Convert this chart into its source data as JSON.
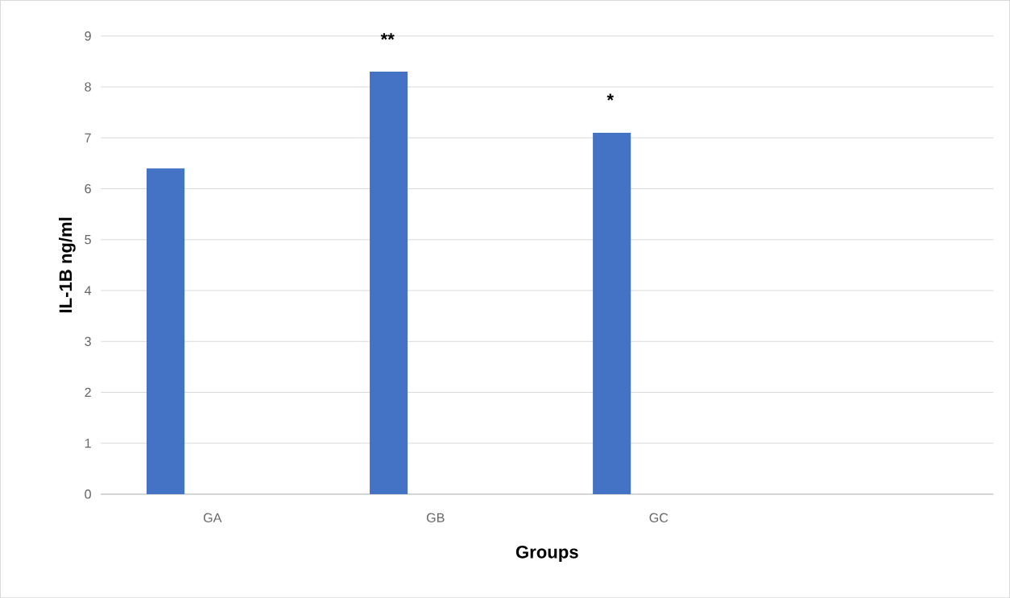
{
  "chart_data": {
    "type": "bar",
    "categories": [
      "GA",
      "GB",
      "GC",
      null
    ],
    "values": [
      6.4,
      8.3,
      7.1,
      null
    ],
    "color": "#4472c4",
    "xlabel": "Groups",
    "ylabel": "IL-1B ng/ml",
    "ylim": [
      0,
      9
    ],
    "yticks": [
      0,
      1,
      2,
      3,
      4,
      5,
      6,
      7,
      8,
      9
    ],
    "grid": "y",
    "annotations": [
      "**",
      "*"
    ]
  }
}
